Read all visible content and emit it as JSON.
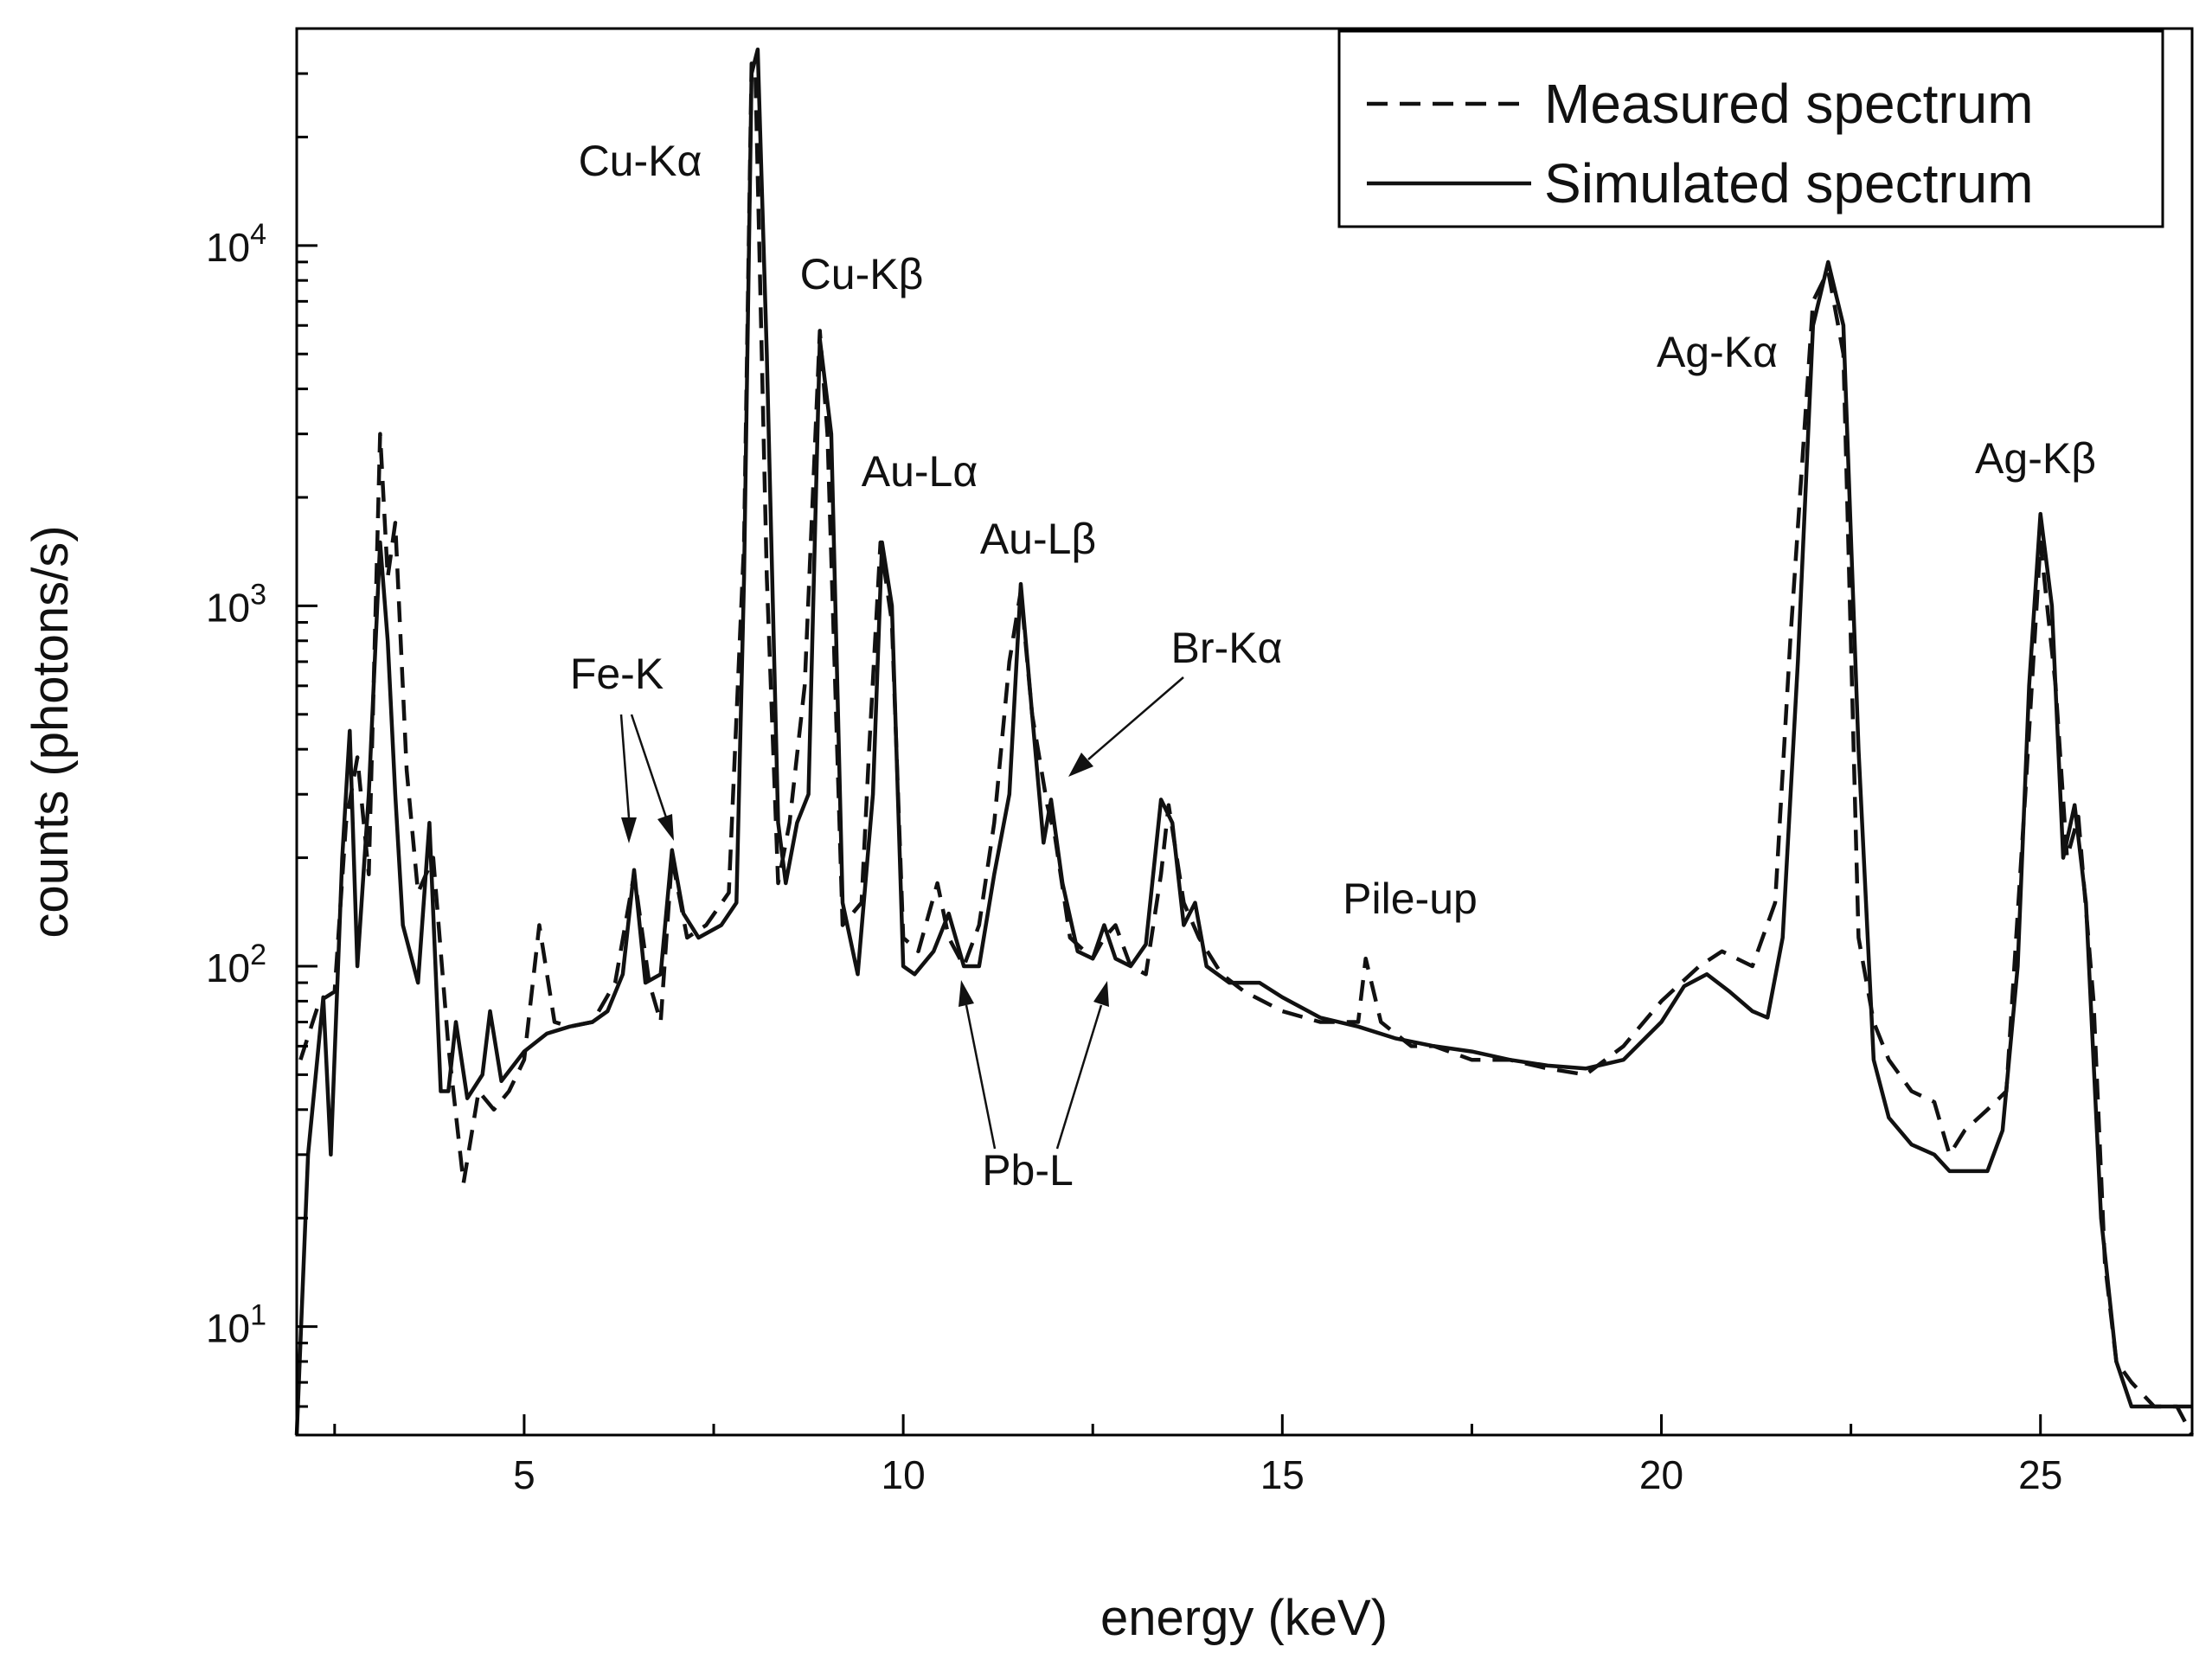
{
  "chart_data": {
    "type": "line",
    "title": "",
    "xlabel": "energy (keV)",
    "ylabel": "counts (photons/s)",
    "xscale": "linear",
    "yscale": "log",
    "xlim": [
      2.0,
      27.0
    ],
    "ylim": [
      5,
      40000
    ],
    "grid": false,
    "legend_position": "top-right",
    "x_ticks": [
      {
        "value": 5,
        "label": "5"
      },
      {
        "value": 10,
        "label": "10"
      },
      {
        "value": 15,
        "label": "15"
      },
      {
        "value": 20,
        "label": "20"
      },
      {
        "value": 25,
        "label": "25"
      }
    ],
    "x_minor_ticks": [
      2.5,
      7.5,
      12.5,
      17.5,
      22.5
    ],
    "y_ticks": [
      {
        "value": 10,
        "base": "10",
        "exp": "1"
      },
      {
        "value": 100,
        "base": "10",
        "exp": "2"
      },
      {
        "value": 1000,
        "base": "10",
        "exp": "3"
      },
      {
        "value": 10000,
        "base": "10",
        "exp": "4"
      }
    ],
    "series": [
      {
        "name": "Measured spectrum",
        "style": "dashed",
        "x": [
          2.05,
          2.3,
          2.5,
          2.65,
          2.8,
          2.95,
          3.1,
          3.2,
          3.3,
          3.45,
          3.6,
          3.8,
          4.0,
          4.2,
          4.4,
          4.6,
          4.8,
          5.0,
          5.2,
          5.4,
          5.6,
          5.9,
          6.2,
          6.45,
          6.65,
          6.8,
          6.95,
          7.15,
          7.4,
          7.7,
          7.9,
          8.0,
          8.05,
          8.2,
          8.35,
          8.5,
          8.7,
          8.9,
          9.0,
          9.2,
          9.45,
          9.55,
          9.7,
          9.85,
          10.0,
          10.2,
          10.45,
          10.6,
          10.8,
          11.0,
          11.2,
          11.4,
          11.55,
          11.7,
          11.9,
          12.0,
          12.2,
          12.5,
          12.65,
          12.8,
          13.0,
          13.2,
          13.4,
          13.5,
          13.7,
          13.9,
          14.2,
          14.5,
          15.0,
          15.5,
          16.0,
          16.1,
          16.3,
          16.7,
          17.0,
          17.5,
          18.0,
          18.5,
          19.0,
          19.5,
          20.0,
          20.5,
          20.8,
          21.2,
          21.5,
          21.7,
          22.0,
          22.2,
          22.4,
          22.6,
          22.8,
          23.0,
          23.3,
          23.6,
          23.8,
          24.0,
          24.3,
          24.55,
          24.8,
          25.0,
          25.2,
          25.35,
          25.5,
          25.7,
          25.85,
          26.0,
          26.2,
          26.5,
          26.8,
          27.0
        ],
        "y": [
          55,
          80,
          85,
          250,
          380,
          180,
          3000,
          1200,
          1700,
          350,
          160,
          200,
          60,
          25,
          45,
          40,
          45,
          55,
          130,
          70,
          68,
          70,
          90,
          180,
          90,
          70,
          200,
          120,
          130,
          160,
          1500,
          32000,
          30000,
          1200,
          170,
          250,
          600,
          5800,
          3000,
          130,
          150,
          400,
          1500,
          900,
          120,
          110,
          170,
          120,
          100,
          130,
          250,
          700,
          1100,
          500,
          280,
          230,
          120,
          105,
          120,
          130,
          100,
          95,
          180,
          280,
          150,
          120,
          95,
          85,
          75,
          70,
          70,
          105,
          70,
          60,
          60,
          55,
          55,
          52,
          50,
          60,
          80,
          100,
          110,
          100,
          150,
          800,
          7000,
          8500,
          5000,
          120,
          70,
          55,
          45,
          42,
          30,
          35,
          40,
          45,
          300,
          1500,
          600,
          200,
          260,
          80,
          15,
          8,
          7,
          6,
          6,
          5
        ]
      },
      {
        "name": "Simulated spectrum",
        "style": "solid",
        "x": [
          2.0,
          2.15,
          2.35,
          2.45,
          2.6,
          2.7,
          2.8,
          2.95,
          3.1,
          3.2,
          3.3,
          3.4,
          3.6,
          3.75,
          3.9,
          4.0,
          4.1,
          4.25,
          4.45,
          4.55,
          4.7,
          5.0,
          5.3,
          5.6,
          5.9,
          6.1,
          6.3,
          6.45,
          6.6,
          6.8,
          6.95,
          7.1,
          7.3,
          7.6,
          7.8,
          7.9,
          8.0,
          8.08,
          8.2,
          8.35,
          8.45,
          8.6,
          8.75,
          8.9,
          9.05,
          9.2,
          9.4,
          9.6,
          9.72,
          9.85,
          10.0,
          10.15,
          10.4,
          10.6,
          10.8,
          11.0,
          11.2,
          11.4,
          11.55,
          11.7,
          11.85,
          11.95,
          12.1,
          12.3,
          12.5,
          12.65,
          12.8,
          13.0,
          13.2,
          13.4,
          13.55,
          13.7,
          13.85,
          14.0,
          14.3,
          14.7,
          15.0,
          15.5,
          16.0,
          16.5,
          17.0,
          17.5,
          18.0,
          18.5,
          19.0,
          19.5,
          20.0,
          20.3,
          20.6,
          20.9,
          21.2,
          21.4,
          21.6,
          21.8,
          22.0,
          22.2,
          22.4,
          22.6,
          22.8,
          23.0,
          23.3,
          23.6,
          23.8,
          24.0,
          24.3,
          24.5,
          24.7,
          24.85,
          25.0,
          25.15,
          25.3,
          25.45,
          25.6,
          25.8,
          26.0,
          26.2,
          26.5,
          26.8,
          27.0
        ],
        "y": [
          5,
          30,
          82,
          30,
          200,
          450,
          100,
          300,
          1500,
          800,
          300,
          130,
          90,
          250,
          45,
          45,
          70,
          43,
          50,
          75,
          48,
          58,
          65,
          68,
          70,
          75,
          95,
          185,
          90,
          95,
          210,
          140,
          120,
          130,
          150,
          1200,
          30000,
          35000,
          5000,
          250,
          170,
          250,
          300,
          5500,
          3000,
          150,
          95,
          300,
          1500,
          1000,
          100,
          95,
          110,
          140,
          100,
          100,
          180,
          300,
          1150,
          500,
          220,
          290,
          170,
          110,
          105,
          130,
          105,
          100,
          115,
          290,
          250,
          130,
          150,
          100,
          90,
          90,
          82,
          72,
          68,
          63,
          60,
          58,
          55,
          53,
          52,
          55,
          70,
          88,
          95,
          85,
          75,
          72,
          120,
          700,
          6000,
          9000,
          6000,
          400,
          55,
          38,
          32,
          30,
          27,
          27,
          27,
          35,
          100,
          600,
          1800,
          1000,
          200,
          280,
          150,
          20,
          8,
          6,
          6,
          6,
          6
        ]
      }
    ],
    "annotations": [
      {
        "id": "cu-ka",
        "label": "Cu-Kα",
        "near_x": 8.0
      },
      {
        "id": "cu-kb",
        "label": "Cu-Kβ",
        "near_x": 8.9
      },
      {
        "id": "au-la",
        "label": "Au-Lα",
        "near_x": 9.7
      },
      {
        "id": "au-lb",
        "label": "Au-Lβ",
        "near_x": 11.5
      },
      {
        "id": "br-ka",
        "label": "Br-Kα",
        "near_x": 12.0
      },
      {
        "id": "fe-k",
        "label": "Fe-K",
        "near_x": 6.6
      },
      {
        "id": "pile-up",
        "label": "Pile-up",
        "near_x": 16.2
      },
      {
        "id": "pb-l",
        "label": "Pb-L",
        "near_x": 11.8
      },
      {
        "id": "ag-ka",
        "label": "Ag-Kα",
        "near_x": 22.2
      },
      {
        "id": "ag-kb",
        "label": "Ag-Kβ",
        "near_x": 25.0
      }
    ]
  }
}
